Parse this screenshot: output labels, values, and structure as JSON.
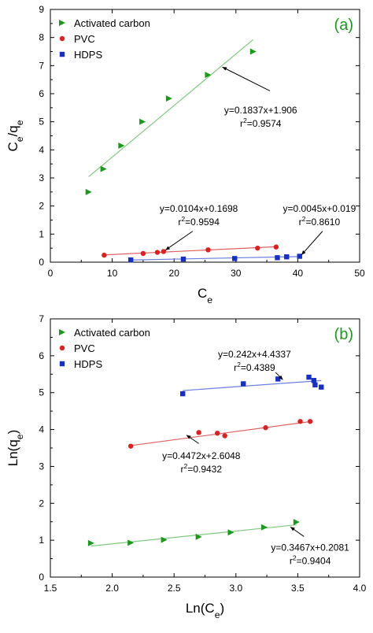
{
  "chart_data": [
    {
      "type": "scatter",
      "panel_label": "(a)",
      "panel_label_color": "#1a9a1a",
      "xlabel": "C",
      "xlabel_sub": "e",
      "ylabel": {
        "a": "C",
        "a_sub": "e",
        "sep": "/q",
        "b_sub": "e"
      },
      "xlim": [
        0,
        50
      ],
      "ylim": [
        0,
        9
      ],
      "xticks": [
        0,
        10,
        20,
        30,
        40,
        50
      ],
      "yticks": [
        0,
        1,
        2,
        3,
        4,
        5,
        6,
        7,
        8,
        9
      ],
      "legend_position": "top-left",
      "series": [
        {
          "name": "Activated carbon",
          "marker": "triangle-right",
          "color": "#1a9a1a",
          "line_color": "#7fc97f",
          "x": [
            6.2,
            8.6,
            11.5,
            14.9,
            19.2,
            25.5,
            32.8
          ],
          "y": [
            2.5,
            3.32,
            4.15,
            5.0,
            5.83,
            6.67,
            7.5
          ],
          "fit": {
            "x": [
              6.2,
              32.8
            ],
            "y": [
              3.045,
              7.93
            ]
          }
        },
        {
          "name": "PVC",
          "marker": "circle",
          "color": "#e02020",
          "line_color": "#e06060",
          "x": [
            8.7,
            15.0,
            17.3,
            18.3,
            25.5,
            33.5,
            36.5
          ],
          "y": [
            0.25,
            0.31,
            0.35,
            0.38,
            0.44,
            0.5,
            0.54
          ],
          "fit": {
            "x": [
              8.7,
              36.5
            ],
            "y": [
              0.2603,
              0.5494
            ]
          }
        },
        {
          "name": "HDPS",
          "marker": "square",
          "color": "#1530c8",
          "line_color": "#6a7fe0",
          "x": [
            13.0,
            21.5,
            29.8,
            36.7,
            38.2,
            40.3
          ],
          "y": [
            0.08,
            0.11,
            0.13,
            0.16,
            0.19,
            0.21
          ],
          "fit": {
            "x": [
              13.0,
              40.3
            ],
            "y": [
              0.0775,
              0.2
            ]
          }
        }
      ],
      "annotations": [
        {
          "line1": "y=0.1837x+1.906",
          "r2": "0.9574",
          "text_x": 34,
          "text_y": 5.3,
          "arrow_from": [
            35.5,
            6.1
          ],
          "arrow_to": [
            27.8,
            6.95
          ]
        },
        {
          "line1": "y=0.0104x+0.1698",
          "r2": "0.9594",
          "text_x": 24,
          "text_y": 1.8,
          "arrow_from": [
            23,
            1.1
          ],
          "arrow_to": [
            18.6,
            0.43
          ]
        },
        {
          "line1": "y=0.0045x+0.019",
          "r2": "0.8610",
          "text_x": 43.5,
          "text_y": 1.8,
          "arrow_from": [
            44,
            1.1
          ],
          "arrow_to": [
            40.6,
            0.26
          ]
        }
      ]
    },
    {
      "type": "scatter",
      "panel_label": "(b)",
      "panel_label_color": "#1a9a1a",
      "xlabel": "Ln(C",
      "xlabel_sub": "e",
      "xlabel_end": ")",
      "ylabel": "Ln(q",
      "ylabel_sub": "e",
      "ylabel_end": ")",
      "xlim": [
        1.5,
        4.0
      ],
      "ylim": [
        0,
        7
      ],
      "xticks": [
        1.5,
        2.0,
        2.5,
        3.0,
        3.5,
        4.0
      ],
      "xtick_labels": [
        "1.5",
        "2.0",
        "2.5",
        "3.0",
        "3.5",
        "4.0"
      ],
      "yticks": [
        0,
        1,
        2,
        3,
        4,
        5,
        6,
        7
      ],
      "legend_position": "top-left",
      "series": [
        {
          "name": "Activated carbon",
          "marker": "triangle-right",
          "color": "#1a9a1a",
          "line_color": "#7fc97f",
          "x": [
            1.83,
            2.15,
            2.42,
            2.7,
            2.96,
            3.23,
            3.49
          ],
          "y": [
            0.92,
            0.93,
            1.01,
            1.09,
            1.21,
            1.35,
            1.49
          ],
          "fit": {
            "x": [
              1.83,
              3.49
            ],
            "y": [
              0.843,
              1.418
            ]
          }
        },
        {
          "name": "PVC",
          "marker": "circle",
          "color": "#e02020",
          "line_color": "#e06060",
          "x": [
            2.15,
            2.7,
            2.85,
            2.91,
            3.24,
            3.52,
            3.6
          ],
          "y": [
            3.55,
            3.92,
            3.9,
            3.83,
            4.05,
            4.22,
            4.22
          ],
          "fit": {
            "x": [
              2.15,
              3.6
            ],
            "y": [
              3.566,
              4.215
            ]
          }
        },
        {
          "name": "HDPS",
          "marker": "square",
          "color": "#1530c8",
          "line_color": "#6a7fe0",
          "x": [
            2.57,
            3.06,
            3.34,
            3.59,
            3.63,
            3.64,
            3.69
          ],
          "y": [
            4.97,
            5.24,
            5.37,
            5.42,
            5.33,
            5.21,
            5.15
          ],
          "fit": {
            "x": [
              2.57,
              3.69
            ],
            "y": [
              5.056,
              5.327
            ]
          }
        }
      ],
      "annotations": [
        {
          "line1": "y=0.242x+4.4337",
          "r2": "0.4389",
          "text_x": 3.15,
          "text_y": 5.95,
          "arrow_from": [
            3.32,
            5.55
          ],
          "arrow_to": [
            3.38,
            5.35
          ]
        },
        {
          "line1": "y=0.4472x+2.6048",
          "r2": "0.9432",
          "text_x": 2.72,
          "text_y": 3.2,
          "arrow_from": [
            2.7,
            3.62
          ],
          "arrow_to": [
            2.6,
            3.85
          ]
        },
        {
          "line1": "y=0.3467x+0.2081",
          "r2": "0.9404",
          "text_x": 3.6,
          "text_y": 0.72,
          "arrow_from": [
            3.55,
            1.1
          ],
          "arrow_to": [
            3.44,
            1.36
          ]
        }
      ]
    }
  ]
}
